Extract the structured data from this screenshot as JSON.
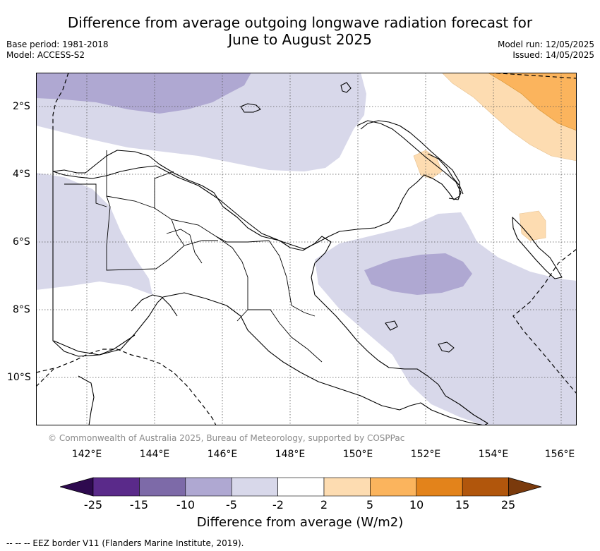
{
  "title": {
    "line1": "Difference from average outgoing longwave radiation forecast for",
    "line2": "June to August 2025"
  },
  "meta": {
    "base_period": "Base period: 1981-2018",
    "model": "Model: ACCESS-S2",
    "model_run": "Model run: 12/05/2025",
    "issued": "Issued: 14/05/2025"
  },
  "map": {
    "lat_ticks": [
      "2°S",
      "4°S",
      "6°S",
      "8°S",
      "10°S"
    ],
    "lon_ticks": [
      "142°E",
      "144°E",
      "146°E",
      "148°E",
      "150°E",
      "152°E",
      "154°E",
      "156°E"
    ],
    "copyright": "© Commonwealth of Australia 2025, Bureau of Meteorology, supported by COSPPac",
    "extent": {
      "lon": [
        140.5,
        156.5
      ],
      "lat": [
        -1.0,
        -11.5
      ]
    }
  },
  "colorbar": {
    "ticks": [
      "-25",
      "-15",
      "-10",
      "-5",
      "-2",
      "2",
      "5",
      "10",
      "15",
      "25"
    ],
    "colors": [
      "#2e0a4f",
      "#5a2a8a",
      "#7d6aa8",
      "#afa8d2",
      "#d8d8ea",
      "#ffffff",
      "#fddcb1",
      "#fbb45d",
      "#e3831b",
      "#b1560c",
      "#7a3a0c"
    ],
    "label": "Difference from average (W/m2)"
  },
  "legend_note": "-- -- -- EEZ border V11 (Flanders Marine Institute, 2019)."
}
